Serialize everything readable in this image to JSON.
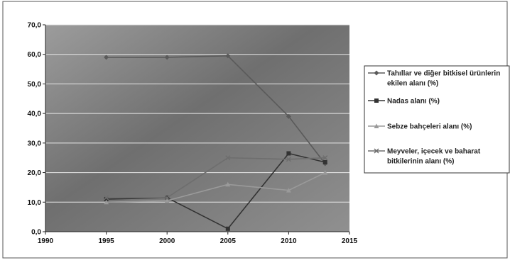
{
  "chart_data": {
    "type": "line",
    "title": "",
    "xlabel": "",
    "ylabel": "",
    "xlim": [
      1990,
      2015
    ],
    "ylim": [
      0,
      70
    ],
    "x_ticks": [
      1990,
      1995,
      2000,
      2005,
      2010,
      2015
    ],
    "y_ticks": [
      "0,0",
      "10,0",
      "20,0",
      "30,0",
      "40,0",
      "50,0",
      "60,0",
      "70,0"
    ],
    "y_tick_values": [
      0,
      10,
      20,
      30,
      40,
      50,
      60,
      70
    ],
    "grid": true,
    "legend_position": "right",
    "series": [
      {
        "name": "Tahıllar ve diğer bitkisel ürünlerin ekilen alanı (%)",
        "color": "#5a5a5a",
        "marker": "diamond",
        "points": [
          [
            1995,
            59.0
          ],
          [
            2000,
            59.0
          ],
          [
            2005,
            59.5
          ],
          [
            2010,
            39.0
          ],
          [
            2013,
            23.0
          ]
        ]
      },
      {
        "name": "Nadas alanı (%)",
        "color": "#333333",
        "marker": "square",
        "points": [
          [
            1995,
            11.0
          ],
          [
            2000,
            11.5
          ],
          [
            2005,
            1.0
          ],
          [
            2010,
            26.5
          ],
          [
            2013,
            23.5
          ]
        ]
      },
      {
        "name": "Sebze bahçeleri alanı (%)",
        "color": "#9a9a9a",
        "marker": "triangle",
        "points": [
          [
            1995,
            10.0
          ],
          [
            2000,
            10.5
          ],
          [
            2005,
            16.0
          ],
          [
            2010,
            14.0
          ],
          [
            2013,
            20.0
          ]
        ]
      },
      {
        "name": "Meyveler, içecek ve baharat bitkilerinin alanı (%)",
        "color": "#6e6e6e",
        "marker": "x",
        "points": [
          [
            1995,
            11.5
          ],
          [
            2000,
            11.5
          ],
          [
            2005,
            25.0
          ],
          [
            2010,
            24.5
          ],
          [
            2013,
            25.0
          ]
        ]
      }
    ]
  }
}
